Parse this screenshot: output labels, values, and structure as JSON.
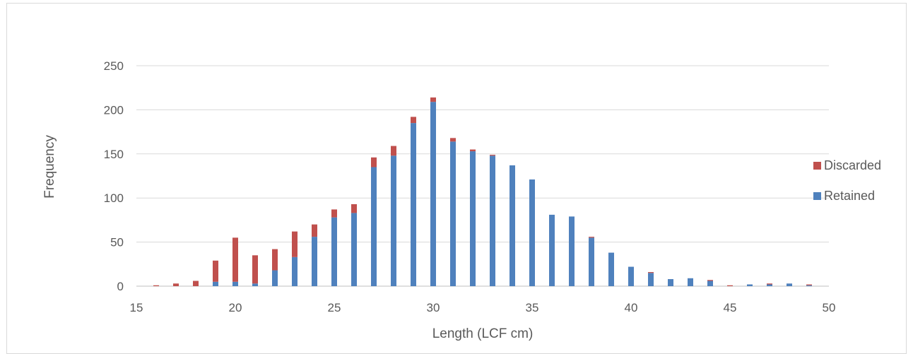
{
  "chart_data": {
    "type": "bar",
    "stacked": true,
    "title": "",
    "xlabel": "Length (LCF cm)",
    "ylabel": "Frequency",
    "xlim": [
      15,
      50
    ],
    "ylim": [
      0,
      250
    ],
    "xticks": [
      15,
      20,
      25,
      30,
      35,
      40,
      45,
      50
    ],
    "yticks": [
      0,
      50,
      100,
      150,
      200,
      250
    ],
    "grid": true,
    "legend_position": "right",
    "x": [
      16,
      17,
      18,
      19,
      20,
      21,
      22,
      23,
      24,
      25,
      26,
      27,
      28,
      29,
      30,
      31,
      32,
      33,
      34,
      35,
      36,
      37,
      38,
      39,
      40,
      41,
      42,
      43,
      44,
      45,
      46,
      47,
      48,
      49
    ],
    "series": [
      {
        "name": "Retained",
        "color": "#4f81bd",
        "values": [
          0,
          0,
          0,
          5,
          5,
          3,
          18,
          33,
          56,
          78,
          83,
          135,
          148,
          185,
          209,
          164,
          153,
          148,
          137,
          121,
          81,
          79,
          55,
          38,
          22,
          15,
          8,
          9,
          6,
          0,
          2,
          2,
          3,
          1
        ]
      },
      {
        "name": "Discarded",
        "color": "#c0504d",
        "values": [
          1,
          3,
          6,
          24,
          50,
          32,
          24,
          29,
          14,
          9,
          10,
          11,
          11,
          7,
          5,
          4,
          2,
          1,
          0,
          0,
          0,
          0,
          1,
          0,
          0,
          1,
          0,
          0,
          1,
          1,
          0,
          1,
          0,
          1
        ]
      }
    ],
    "legend": [
      {
        "name": "Discarded",
        "color": "#c0504d"
      },
      {
        "name": "Retained",
        "color": "#4f81bd"
      }
    ]
  }
}
